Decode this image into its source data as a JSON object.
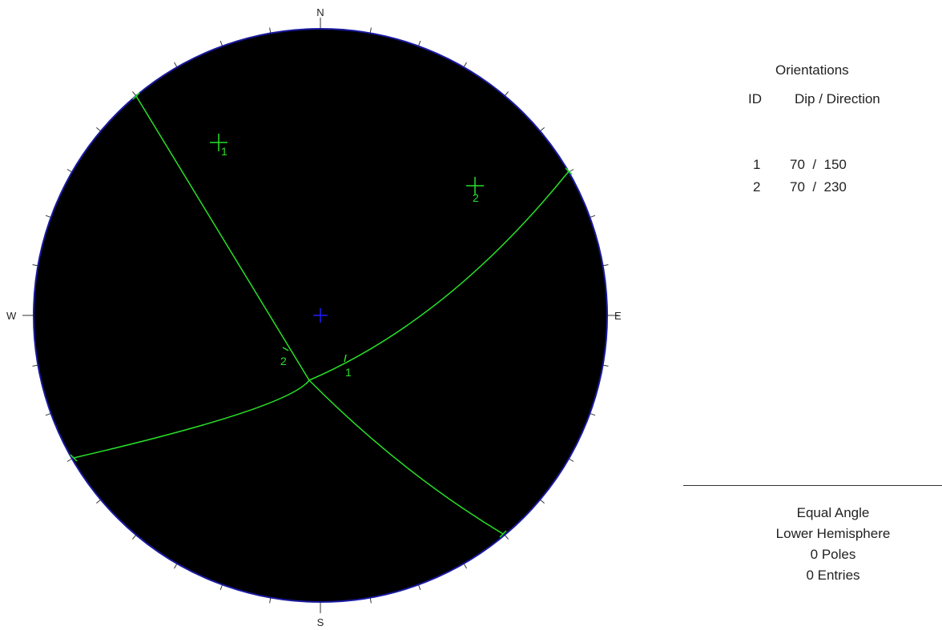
{
  "compass": {
    "north": "N",
    "south": "S",
    "east": "E",
    "west": "W"
  },
  "legend": {
    "title": "Orientations",
    "col_id": "ID",
    "col_dip": "Dip / Direction",
    "rows": [
      {
        "id": "1",
        "dip_direction": "70  /  150",
        "dip": 70,
        "direction": 150
      },
      {
        "id": "2",
        "dip_direction": "70  /  230",
        "dip": 70,
        "direction": 230
      }
    ]
  },
  "info": {
    "projection": "Equal Angle",
    "hemisphere": "Lower Hemisphere",
    "poles": "0 Poles",
    "entries": "0 Entries"
  },
  "plot_labels": {
    "plane_1": "1",
    "plane_2": "2",
    "pole_1": "1",
    "pole_2": "2"
  },
  "colors": {
    "net_fill": "#000000",
    "net_border": "#1a1aa0",
    "plane": "#28e028",
    "center": "#1e1eff"
  }
}
